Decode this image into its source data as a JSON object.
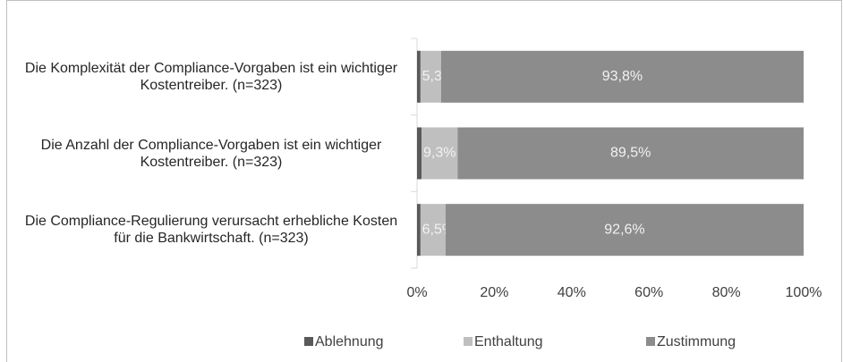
{
  "chart_data": {
    "type": "stacked-bar-horizontal",
    "categories": [
      "Die Komplexität der Compliance-Vorgaben ist ein wichtiger Kostentreiber. (n=323)",
      "Die Anzahl der Compliance-Vorgaben ist ein wichtiger Kostentreiber. (n=323)",
      "Die Compliance-Regulierung verursacht erhebliche Kosten für die Bankwirtschaft. (n=323)"
    ],
    "series": [
      {
        "name": "Ablehnung",
        "color": "#595959",
        "values": [
          0.9,
          1.2,
          0.9
        ]
      },
      {
        "name": "Enthaltung",
        "color": "#bfbfbf",
        "values": [
          5.3,
          9.3,
          6.5
        ],
        "value_labels": [
          "5,3%",
          "9,3%",
          "6,5%"
        ]
      },
      {
        "name": "Zustimmung",
        "color": "#8c8c8c",
        "values": [
          93.8,
          89.5,
          92.6
        ],
        "value_labels": [
          "93,8%",
          "89,5%",
          "92,6%"
        ]
      }
    ],
    "xlim": [
      0,
      100
    ],
    "xticks": [
      {
        "value": 0,
        "label": "0%"
      },
      {
        "value": 20,
        "label": "20%"
      },
      {
        "value": 40,
        "label": "40%"
      },
      {
        "value": 60,
        "label": "60%"
      },
      {
        "value": 80,
        "label": "80%"
      },
      {
        "value": 100,
        "label": "100%"
      }
    ],
    "legend": "bottom"
  }
}
